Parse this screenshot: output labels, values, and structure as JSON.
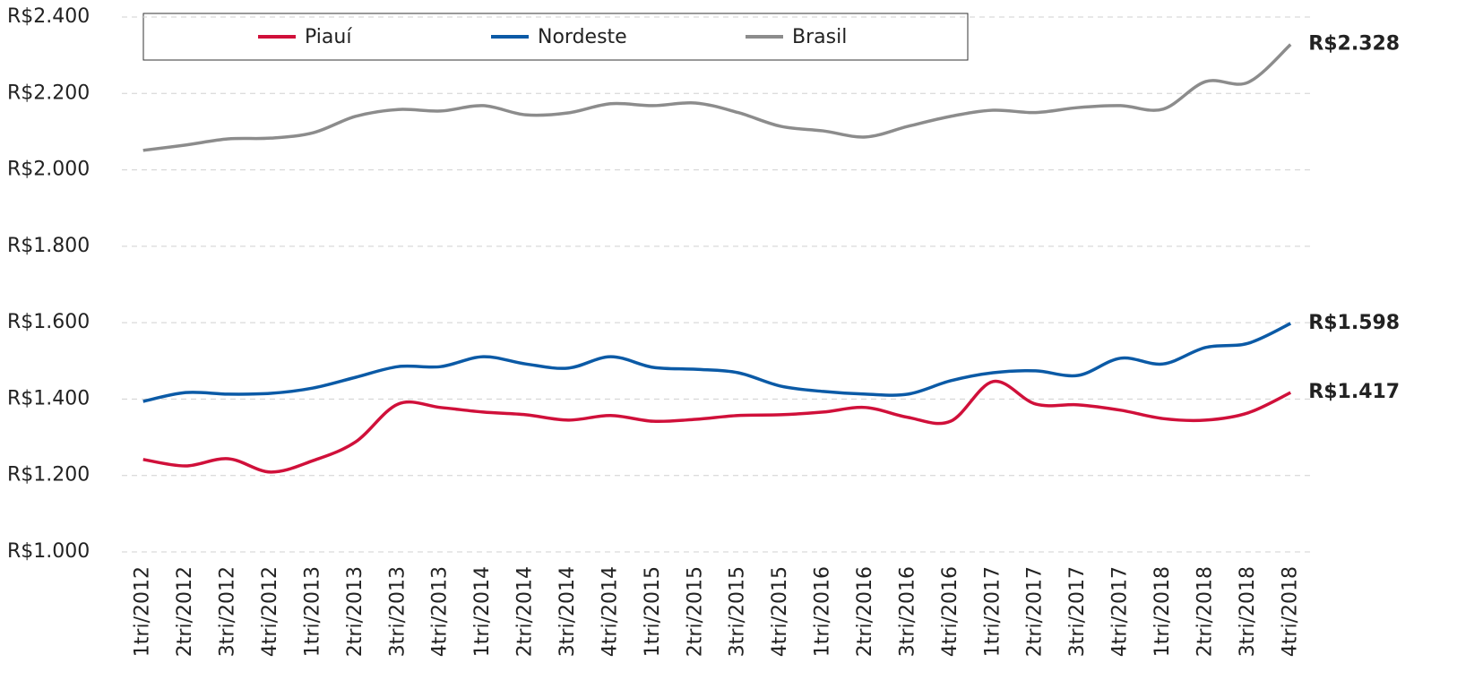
{
  "chart_data": {
    "type": "line",
    "categories": [
      "1tri/2012",
      "2tri/2012",
      "3tri/2012",
      "4tri/2012",
      "1tri/2013",
      "2tri/2013",
      "3tri/2013",
      "4tri/2013",
      "1tri/2014",
      "2tri/2014",
      "3tri/2014",
      "4tri/2014",
      "1tri/2015",
      "2tri/2015",
      "3tri/2015",
      "4tri/2015",
      "1tri/2016",
      "2tri/2016",
      "3tri/2016",
      "4tri/2016",
      "1tri/2017",
      "2tri/2017",
      "3tri/2017",
      "4tri/2017",
      "1tri/2018",
      "2tri/2018",
      "3tri/2018",
      "4tri/2018"
    ],
    "series": [
      {
        "name": "Piauí",
        "color": "#d0103a",
        "values": [
          1242,
          1225,
          1244,
          1209,
          1239,
          1288,
          1387,
          1378,
          1366,
          1359,
          1345,
          1357,
          1342,
          1347,
          1357,
          1359,
          1366,
          1378,
          1352,
          1342,
          1446,
          1387,
          1385,
          1371,
          1349,
          1345,
          1364,
          1417
        ],
        "value_labels": [
          null,
          null,
          null,
          null,
          null,
          null,
          null,
          null,
          null,
          null,
          null,
          null,
          null,
          null,
          null,
          null,
          null,
          null,
          null,
          null,
          null,
          null,
          null,
          null,
          null,
          null,
          null,
          "R$1.417"
        ]
      },
      {
        "name": "Nordeste",
        "color": "#0b5aa6",
        "values": [
          1394,
          1417,
          1413,
          1415,
          1429,
          1457,
          1485,
          1485,
          1511,
          1492,
          1481,
          1511,
          1483,
          1478,
          1469,
          1434,
          1420,
          1413,
          1413,
          1448,
          1469,
          1474,
          1462,
          1507,
          1492,
          1535,
          1546,
          1598
        ],
        "value_labels": [
          null,
          null,
          null,
          null,
          null,
          null,
          null,
          null,
          null,
          null,
          null,
          null,
          null,
          null,
          null,
          null,
          null,
          null,
          null,
          null,
          null,
          null,
          null,
          null,
          null,
          null,
          null,
          "R$1.598"
        ]
      },
      {
        "name": "Brasil",
        "color": "#8c8c8c",
        "values": [
          2051,
          2065,
          2081,
          2083,
          2097,
          2140,
          2158,
          2154,
          2168,
          2144,
          2149,
          2173,
          2168,
          2175,
          2150,
          2114,
          2102,
          2086,
          2114,
          2140,
          2156,
          2150,
          2163,
          2168,
          2159,
          2231,
          2229,
          2328
        ],
        "value_labels": [
          null,
          null,
          null,
          null,
          null,
          null,
          null,
          null,
          null,
          null,
          null,
          null,
          null,
          null,
          null,
          null,
          null,
          null,
          null,
          null,
          null,
          null,
          null,
          null,
          null,
          null,
          null,
          "R$2.328"
        ]
      }
    ],
    "ylim": [
      1000,
      2400
    ],
    "yticks": [
      {
        "value": 1000,
        "label": "R$1.000"
      },
      {
        "value": 1200,
        "label": "R$1.200"
      },
      {
        "value": 1400,
        "label": "R$1.400"
      },
      {
        "value": 1600,
        "label": "R$1.600"
      },
      {
        "value": 1800,
        "label": "R$1.800"
      },
      {
        "value": 2000,
        "label": "R$2.000"
      },
      {
        "value": 2200,
        "label": "R$2.200"
      },
      {
        "value": 2400,
        "label": "R$2.400"
      }
    ],
    "grid": true,
    "legend": "top"
  }
}
